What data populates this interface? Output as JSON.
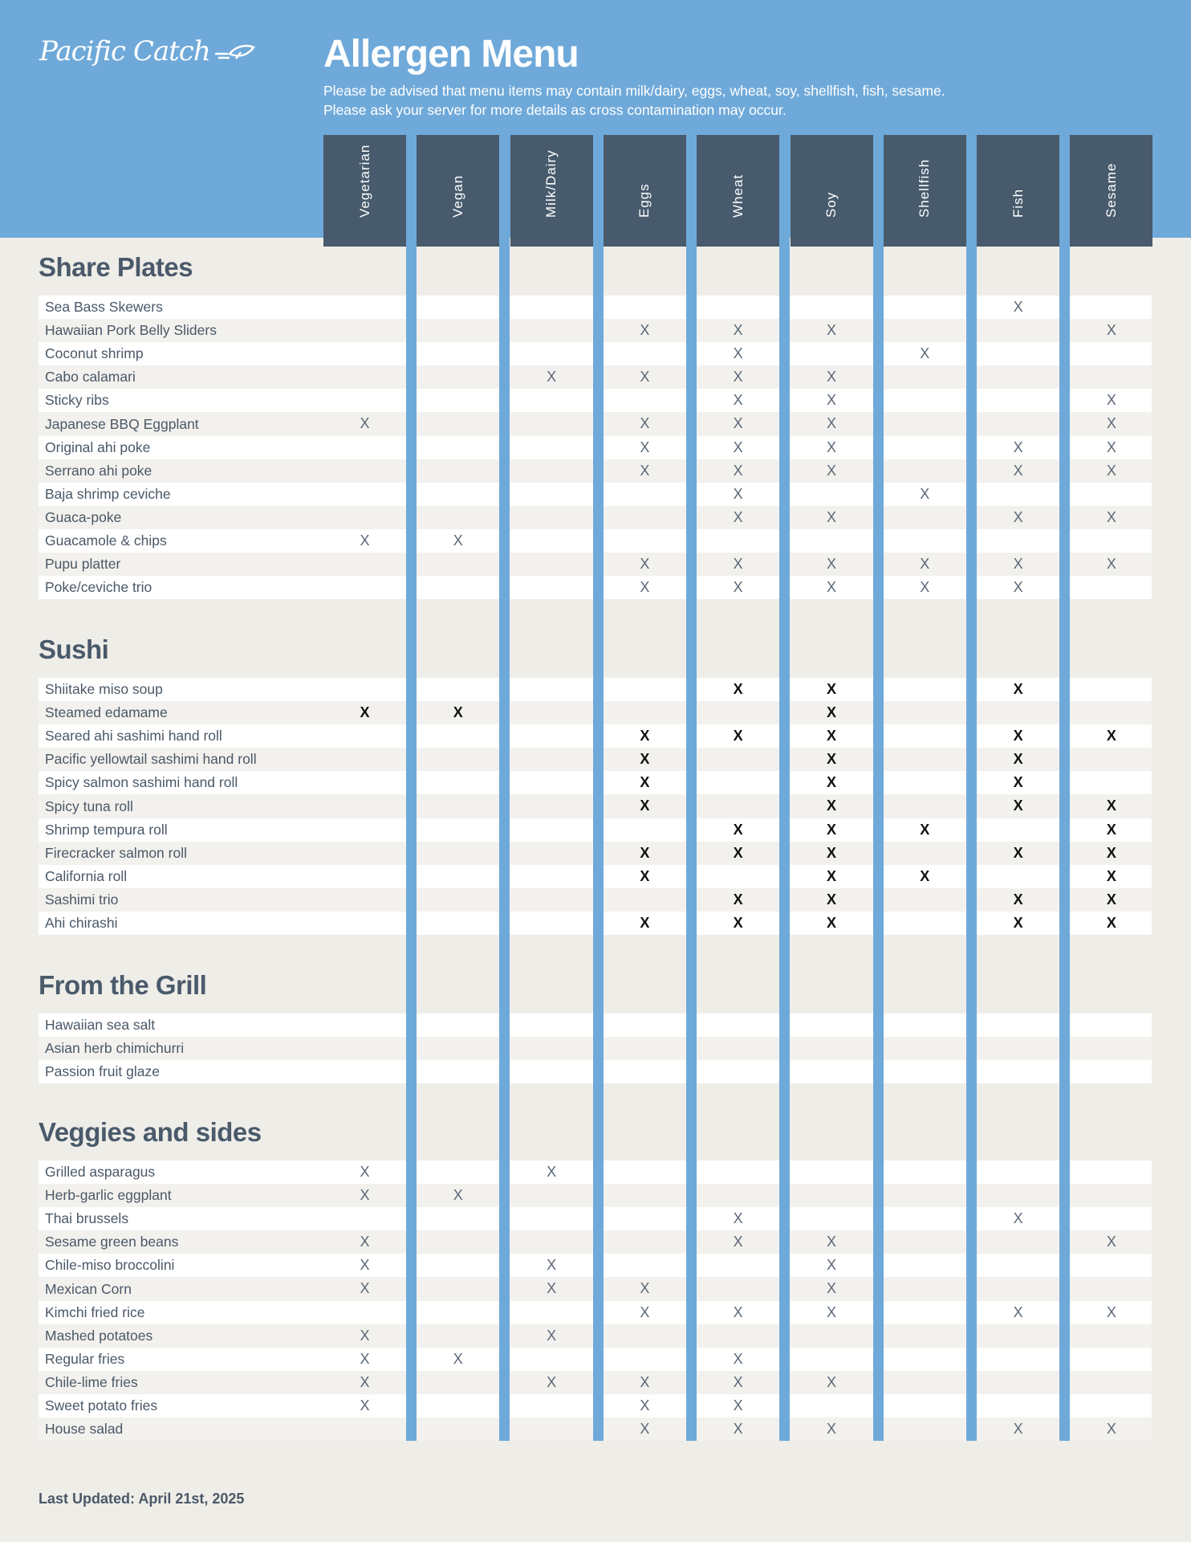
{
  "brand": {
    "logo_text": "Pacific Catch",
    "color_header": "#6fa9d9",
    "color_column": "#475b6d"
  },
  "header": {
    "title": "Allergen Menu",
    "line1": "Please be advised that menu items may contain milk/dairy, eggs, wheat, soy, shellfish, fish, sesame.",
    "line2": "Please ask your server for more details as cross contamination may occur."
  },
  "columns": [
    "Vegetarian",
    "Vegan",
    "Milk/Dairy",
    "Eggs",
    "Wheat",
    "Soy",
    "Shellfish",
    "Fish",
    "Sesame"
  ],
  "sections": [
    {
      "title": "Share Plates",
      "mark_color": "#5a6877",
      "items": [
        {
          "name": "Sea Bass Skewers",
          "marks": [
            "",
            "",
            "",
            "",
            "",
            "",
            "",
            "X",
            ""
          ]
        },
        {
          "name": "Hawaiian Pork Belly Sliders",
          "marks": [
            "",
            "",
            "",
            "X",
            "X",
            "X",
            "",
            "",
            "X"
          ]
        },
        {
          "name": "Coconut shrimp",
          "marks": [
            "",
            "",
            "",
            "",
            "X",
            "",
            "X",
            "",
            ""
          ]
        },
        {
          "name": "Cabo calamari",
          "marks": [
            "",
            "",
            "X",
            "X",
            "X",
            "X",
            "",
            "",
            ""
          ]
        },
        {
          "name": "Sticky ribs",
          "marks": [
            "",
            "",
            "",
            "",
            "X",
            "X",
            "",
            "",
            "X"
          ]
        },
        {
          "name": "Japanese BBQ Eggplant",
          "marks": [
            "X",
            "",
            "",
            "X",
            "X",
            "X",
            "",
            "",
            "X"
          ]
        },
        {
          "name": "Original ahi poke",
          "marks": [
            "",
            "",
            "",
            "X",
            "X",
            "X",
            "",
            "X",
            "X"
          ]
        },
        {
          "name": "Serrano ahi poke",
          "marks": [
            "",
            "",
            "",
            "X",
            "X",
            "X",
            "",
            "X",
            "X"
          ]
        },
        {
          "name": "Baja shrimp ceviche",
          "marks": [
            "",
            "",
            "",
            "",
            "X",
            "",
            "X",
            "",
            ""
          ]
        },
        {
          "name": "Guaca-poke",
          "marks": [
            "",
            "",
            "",
            "",
            "X",
            "X",
            "",
            "X",
            "X"
          ]
        },
        {
          "name": "Guacamole & chips",
          "marks": [
            "X",
            "X",
            "",
            "",
            "",
            "",
            "",
            "",
            ""
          ]
        },
        {
          "name": "Pupu platter",
          "marks": [
            "",
            "",
            "",
            "X",
            "X",
            "X",
            "X",
            "X",
            "X"
          ]
        },
        {
          "name": "Poke/ceviche trio",
          "marks": [
            "",
            "",
            "",
            "X",
            "X",
            "X",
            "X",
            "X",
            ""
          ]
        }
      ]
    },
    {
      "title": "Sushi",
      "mark_color": "#111111",
      "items": [
        {
          "name": "Shiitake miso soup",
          "marks": [
            "",
            "",
            "",
            "",
            "X",
            "X",
            "",
            "X",
            ""
          ]
        },
        {
          "name": "Steamed edamame",
          "marks": [
            "X",
            "X",
            "",
            "",
            "",
            "X",
            "",
            "",
            ""
          ]
        },
        {
          "name": "Seared ahi sashimi hand roll",
          "marks": [
            "",
            "",
            "",
            "X",
            "X",
            "X",
            "",
            "X",
            "X"
          ]
        },
        {
          "name": "Pacific yellowtail sashimi hand roll",
          "marks": [
            "",
            "",
            "",
            "X",
            "",
            "X",
            "",
            "X",
            ""
          ]
        },
        {
          "name": "Spicy salmon sashimi hand roll",
          "marks": [
            "",
            "",
            "",
            "X",
            "",
            "X",
            "",
            "X",
            ""
          ]
        },
        {
          "name": "Spicy tuna roll",
          "marks": [
            "",
            "",
            "",
            "X",
            "",
            "X",
            "",
            "X",
            "X"
          ]
        },
        {
          "name": "Shrimp tempura roll",
          "marks": [
            "",
            "",
            "",
            "",
            "X",
            "X",
            "X",
            "",
            "X"
          ]
        },
        {
          "name": "Firecracker salmon  roll",
          "marks": [
            "",
            "",
            "",
            "X",
            "X",
            "X",
            "",
            "X",
            "X"
          ]
        },
        {
          "name": "California roll",
          "marks": [
            "",
            "",
            "",
            "X",
            "",
            "X",
            "X",
            "",
            "X"
          ]
        },
        {
          "name": "Sashimi trio",
          "marks": [
            "",
            "",
            "",
            "",
            "X",
            "X",
            "",
            "X",
            "X"
          ]
        },
        {
          "name": "Ahi chirashi",
          "marks": [
            "",
            "",
            "",
            "X",
            "X",
            "X",
            "",
            "X",
            "X"
          ]
        }
      ]
    },
    {
      "title": "From the Grill",
      "mark_color": "#5a6877",
      "items": [
        {
          "name": "Hawaiian sea salt",
          "marks": [
            "",
            "",
            "",
            "",
            "",
            "",
            "",
            "",
            ""
          ]
        },
        {
          "name": "Asian herb chimichurri",
          "marks": [
            "",
            "",
            "",
            "",
            "",
            "",
            "",
            "",
            ""
          ]
        },
        {
          "name": "Passion fruit glaze",
          "marks": [
            "",
            "",
            "",
            "",
            "",
            "",
            "",
            "",
            ""
          ]
        }
      ]
    },
    {
      "title": "Veggies and sides",
      "mark_color": "#5a6877",
      "items": [
        {
          "name": "Grilled asparagus",
          "marks": [
            "X",
            "",
            "X",
            "",
            "",
            "",
            "",
            "",
            ""
          ]
        },
        {
          "name": "Herb-garlic eggplant",
          "marks": [
            "X",
            "X",
            "",
            "",
            "",
            "",
            "",
            "",
            ""
          ]
        },
        {
          "name": "Thai brussels",
          "marks": [
            "",
            "",
            "",
            "",
            "X",
            "",
            "",
            "X",
            ""
          ]
        },
        {
          "name": "Sesame green beans",
          "marks": [
            "X",
            "",
            "",
            "",
            "X",
            "X",
            "",
            "",
            "X"
          ]
        },
        {
          "name": "Chile-miso broccolini",
          "marks": [
            "X",
            "",
            "X",
            "",
            "",
            "X",
            "",
            "",
            ""
          ]
        },
        {
          "name": "Mexican Corn",
          "marks": [
            "X",
            "",
            "X",
            "X",
            "",
            "X",
            "",
            "",
            ""
          ]
        },
        {
          "name": "Kimchi fried rice",
          "marks": [
            "",
            "",
            "",
            "X",
            "X",
            "X",
            "",
            "X",
            "X"
          ]
        },
        {
          "name": "Mashed potatoes",
          "marks": [
            "X",
            "",
            "X",
            "",
            "",
            "",
            "",
            "",
            ""
          ]
        },
        {
          "name": "Regular fries",
          "marks": [
            "X",
            "X",
            "",
            "",
            "X",
            "",
            "",
            "",
            ""
          ]
        },
        {
          "name": "Chile-lime fries",
          "marks": [
            "X",
            "",
            "X",
            "X",
            "X",
            "X",
            "",
            "",
            ""
          ]
        },
        {
          "name": "Sweet potato fries",
          "marks": [
            "X",
            "",
            "",
            "X",
            "X",
            "",
            "",
            "",
            ""
          ]
        },
        {
          "name": "House salad",
          "marks": [
            "",
            "",
            "",
            "X",
            "X",
            "X",
            "",
            "X",
            "X"
          ]
        }
      ]
    }
  ],
  "footer": {
    "updated": "Last Updated: April 21st, 2025"
  }
}
